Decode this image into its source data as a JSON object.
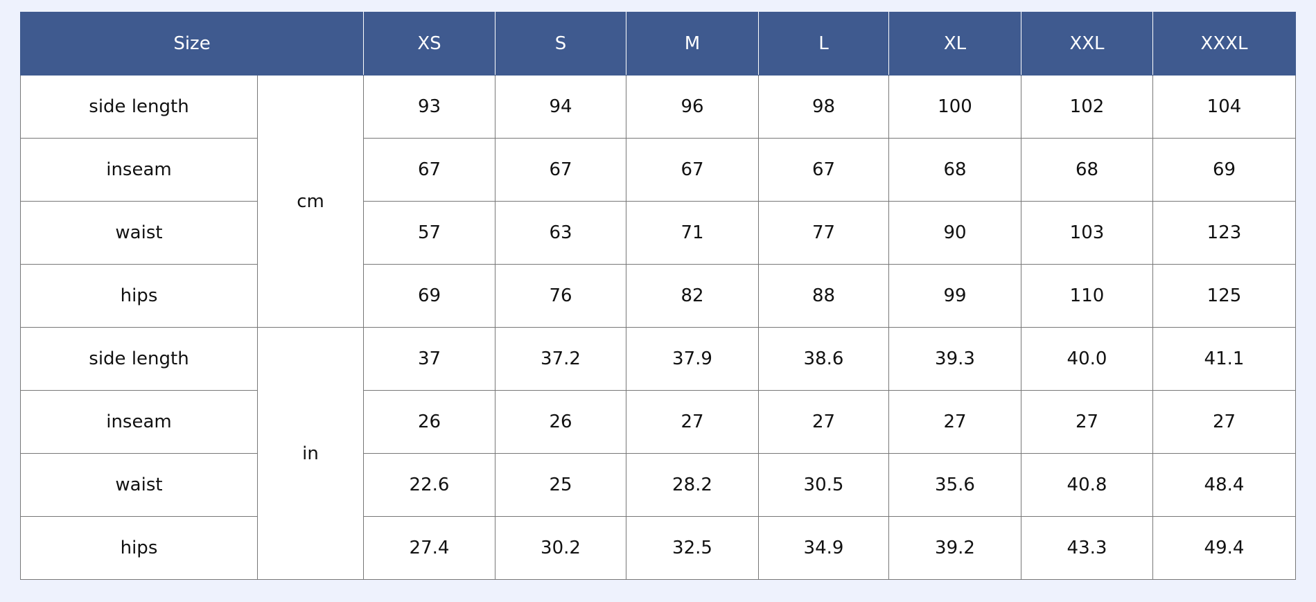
{
  "table": {
    "header": [
      "Size",
      "XS",
      "S",
      "M",
      "L",
      "XL",
      "XXL",
      "XXXL"
    ],
    "groups": [
      {
        "unit": "cm",
        "rows": [
          {
            "label": "side length",
            "values": [
              "93",
              "94",
              "96",
              "98",
              "100",
              "102",
              "104"
            ]
          },
          {
            "label": "inseam",
            "values": [
              "67",
              "67",
              "67",
              "67",
              "68",
              "68",
              "69"
            ]
          },
          {
            "label": "waist",
            "values": [
              "57",
              "63",
              "71",
              "77",
              "90",
              "103",
              "123"
            ]
          },
          {
            "label": "hips",
            "values": [
              "69",
              "76",
              "82",
              "88",
              "99",
              "110",
              "125"
            ]
          }
        ]
      },
      {
        "unit": "in",
        "rows": [
          {
            "label": "side length",
            "values": [
              "37",
              "37.2",
              "37.9",
              "38.6",
              "39.3",
              "40.0",
              "41.1"
            ]
          },
          {
            "label": "inseam",
            "values": [
              "26",
              "26",
              "27",
              "27",
              "27",
              "27",
              "27"
            ]
          },
          {
            "label": "waist",
            "values": [
              "22.6",
              "25",
              "28.2",
              "30.5",
              "35.6",
              "40.8",
              "48.4"
            ]
          },
          {
            "label": "hips",
            "values": [
              "27.4",
              "30.2",
              "32.5",
              "34.9",
              "39.2",
              "43.3",
              "49.4"
            ]
          }
        ]
      }
    ]
  }
}
